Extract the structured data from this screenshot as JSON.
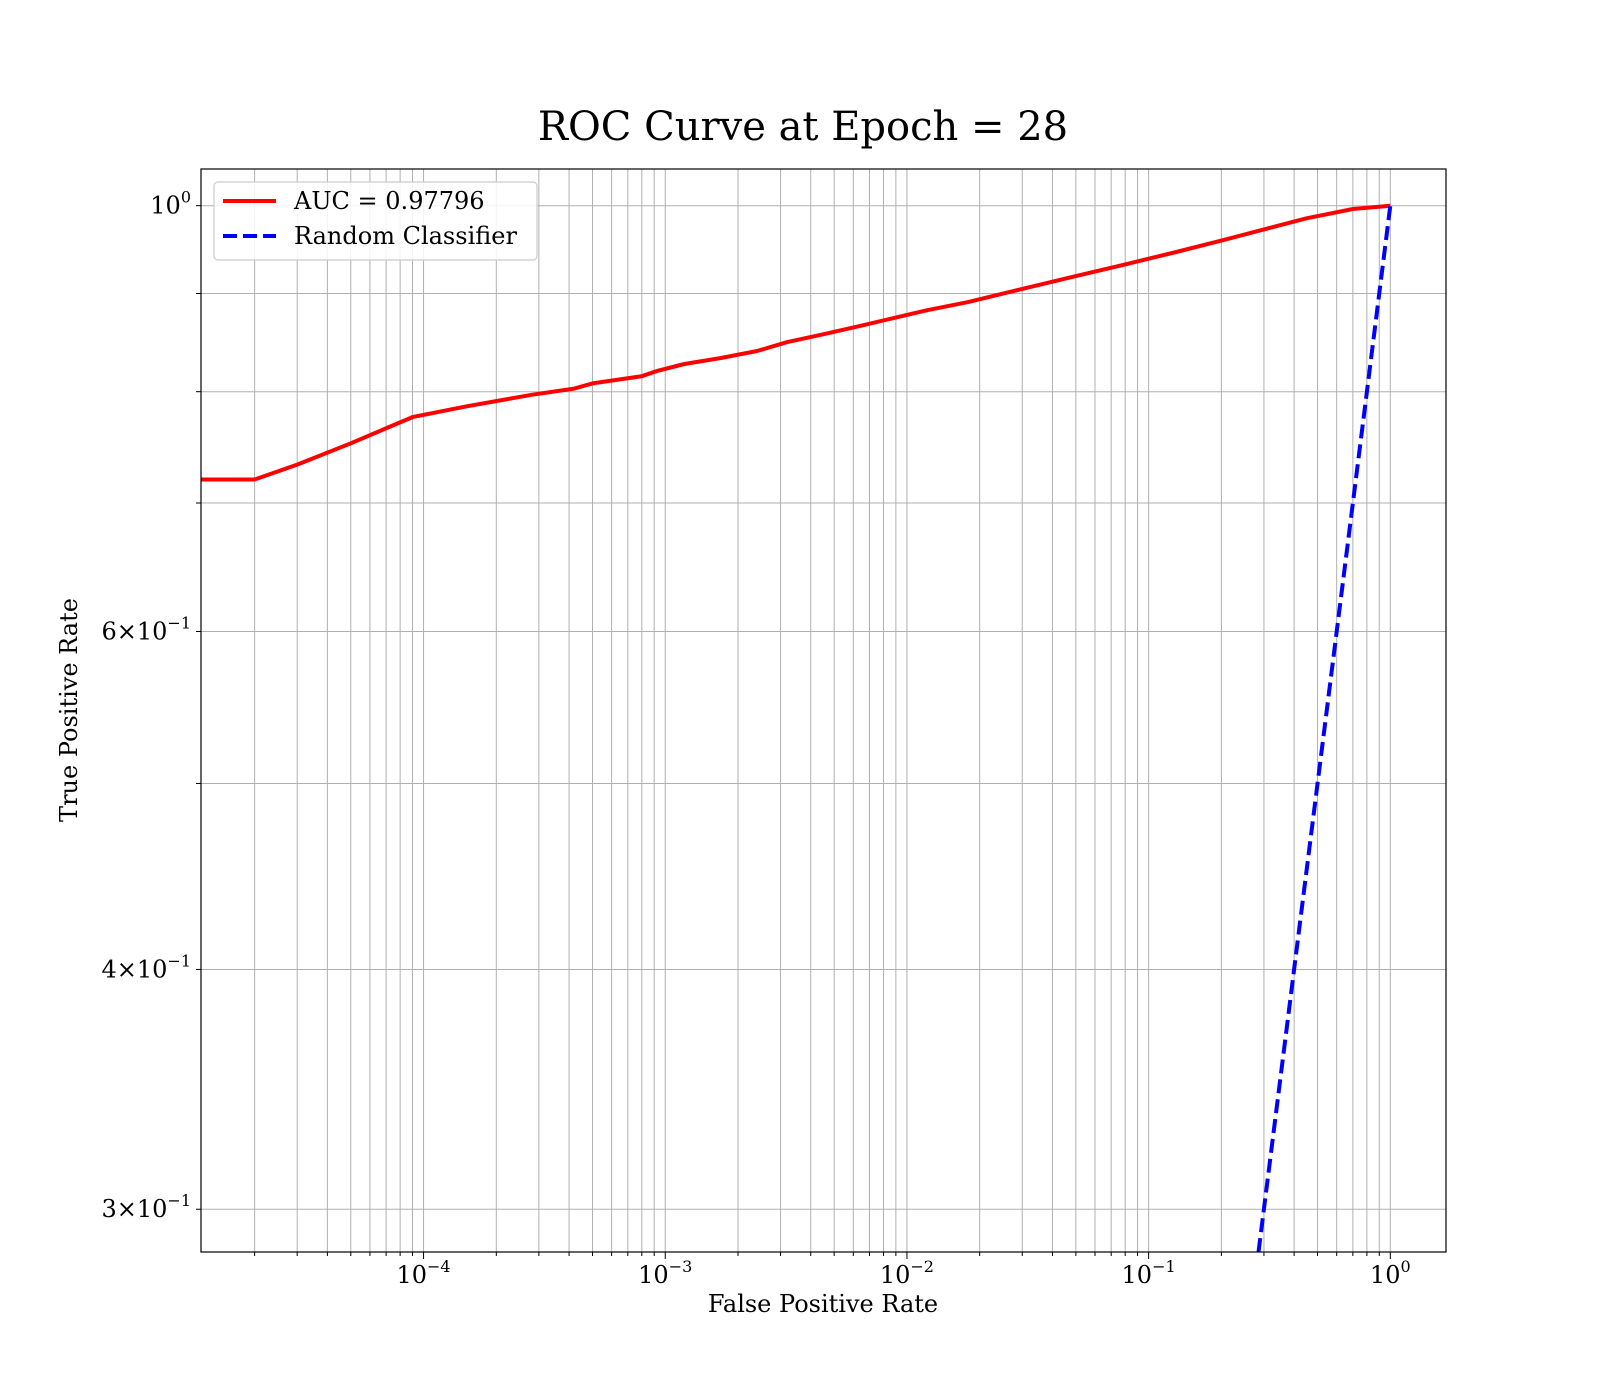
{
  "chart_data": {
    "type": "line",
    "title": "ROC Curve at Epoch = 28",
    "xlabel": "False Positive Rate",
    "ylabel": "True Positive Rate",
    "xscale": "log",
    "yscale": "log",
    "xlim": [
      1.2e-05,
      1.7
    ],
    "ylim": [
      0.285,
      1.045
    ],
    "grid": true,
    "grid_minor": true,
    "legend_position": "upper left",
    "x_ticks": [
      {
        "value": 0.0001,
        "base": "10",
        "exp": "−4"
      },
      {
        "value": 0.001,
        "base": "10",
        "exp": "−3"
      },
      {
        "value": 0.01,
        "base": "10",
        "exp": "−2"
      },
      {
        "value": 0.1,
        "base": "10",
        "exp": "−1"
      },
      {
        "value": 1,
        "base": "10",
        "exp": "0"
      }
    ],
    "y_ticks": [
      {
        "value": 1.0,
        "mant": "",
        "base": "10",
        "exp": "0"
      },
      {
        "value": 0.6,
        "mant": "6",
        "base": "10",
        "exp": "−1"
      },
      {
        "value": 0.4,
        "mant": "4",
        "base": "10",
        "exp": "−1"
      },
      {
        "value": 0.3,
        "mant": "3",
        "base": "10",
        "exp": "−1"
      }
    ],
    "y_minor_ticks": [
      0.9,
      0.8,
      0.7,
      0.5
    ],
    "series": [
      {
        "name": "AUC = 0.97796",
        "color": "#ff0000",
        "style": "solid",
        "x": [
          1.2e-05,
          2e-05,
          3e-05,
          5e-05,
          9e-05,
          0.00015,
          0.00028,
          0.00042,
          0.0005,
          0.0008,
          0.00092,
          0.0012,
          0.0017,
          0.0024,
          0.0032,
          0.0045,
          0.0065,
          0.0085,
          0.012,
          0.018,
          0.03,
          0.05,
          0.08,
          0.13,
          0.2,
          0.3,
          0.45,
          0.7,
          1.0
        ],
        "y": [
          0.72,
          0.72,
          0.733,
          0.752,
          0.776,
          0.786,
          0.797,
          0.803,
          0.808,
          0.815,
          0.82,
          0.827,
          0.833,
          0.84,
          0.849,
          0.857,
          0.866,
          0.873,
          0.882,
          0.891,
          0.905,
          0.919,
          0.932,
          0.946,
          0.959,
          0.972,
          0.985,
          0.996,
          1.0
        ]
      },
      {
        "name": "Random Classifier",
        "color": "#0000ff",
        "style": "dashed",
        "x": [
          0.285,
          0.4,
          0.6,
          0.8,
          1.0
        ],
        "y": [
          0.285,
          0.4,
          0.6,
          0.8,
          1.0
        ]
      }
    ]
  }
}
